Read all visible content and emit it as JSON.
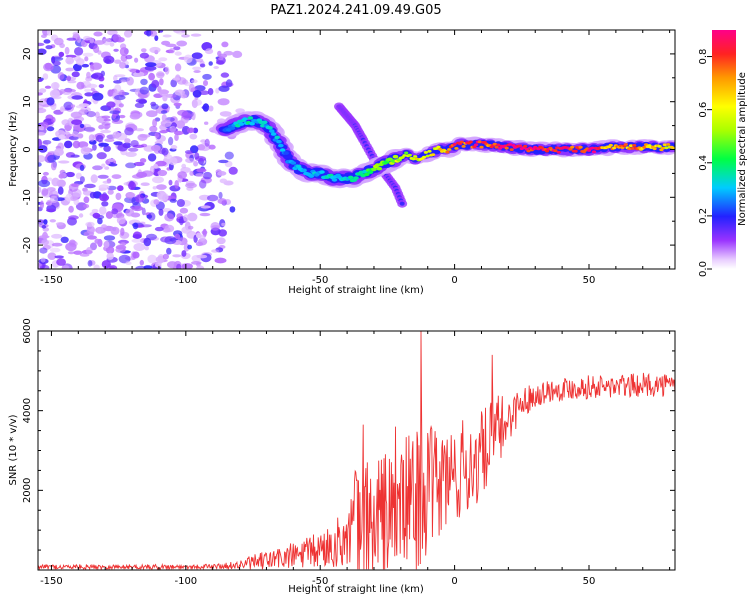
{
  "title": "PAZ1.2024.241.09.49.G05",
  "chart_data": [
    {
      "type": "heatmap",
      "xlabel": "Height of straight line (km)",
      "ylabel": "Frequency (Hz)",
      "xlim": [
        -155,
        82
      ],
      "ylim": [
        -25,
        25
      ],
      "xticks": [
        -150,
        -100,
        -50,
        0,
        50
      ],
      "yticks": [
        -20,
        -10,
        0,
        10,
        20
      ],
      "colorbar": {
        "label": "Normalized spectral amplitude",
        "range": [
          0,
          0.9
        ],
        "ticks": [
          0.0,
          0.2,
          0.4,
          0.6,
          0.8
        ]
      },
      "ridge": {
        "x": [
          -86,
          -82,
          -78,
          -74,
          -70,
          -66,
          -62,
          -58,
          -54,
          -50,
          -46,
          -42,
          -38,
          -34,
          -30,
          -26,
          -22,
          -18,
          -14,
          -10,
          -6,
          -2,
          2,
          6,
          10,
          20,
          30,
          40,
          50,
          60,
          70,
          82
        ],
        "y": [
          4,
          5,
          6,
          6,
          5,
          2,
          -2,
          -4,
          -5,
          -5,
          -6,
          -6,
          -6,
          -5,
          -4,
          -3,
          -2,
          -1,
          -2,
          -1,
          0,
          0,
          1,
          1,
          1,
          0.5,
          0,
          0,
          0,
          0.5,
          0.5,
          0.5
        ],
        "amplitude": [
          0.2,
          0.3,
          0.35,
          0.3,
          0.3,
          0.3,
          0.25,
          0.3,
          0.3,
          0.3,
          0.35,
          0.3,
          0.35,
          0.35,
          0.5,
          0.45,
          0.55,
          0.55,
          0.6,
          0.6,
          0.65,
          0.7,
          0.8,
          0.8,
          0.8,
          0.85,
          0.9,
          0.85,
          0.8,
          0.7,
          0.7,
          0.6
        ]
      },
      "branch": {
        "x": [
          -43,
          -40,
          -37,
          -34,
          -30,
          -26,
          -22,
          -19
        ],
        "y": [
          9,
          7,
          5,
          2,
          -2,
          -5,
          -8,
          -12
        ]
      },
      "noise_region": {
        "x": [
          -155,
          -78
        ],
        "y": [
          -25,
          25
        ]
      }
    },
    {
      "type": "line",
      "xlabel": "Height of straight line (km)",
      "ylabel": "SNR (10 * v/v)",
      "xlim": [
        -155,
        82
      ],
      "ylim": [
        0,
        6000
      ],
      "xticks": [
        -150,
        -100,
        -50,
        0,
        50
      ],
      "yticks": [
        2000,
        4000,
        6000
      ],
      "series": [
        {
          "color": "#ee3333",
          "envelope": {
            "x": [
              -155,
              -100,
              -90,
              -85,
              -80,
              -75,
              -70,
              -65,
              -60,
              -55,
              -50,
              -45,
              -40,
              -37,
              -35,
              -33,
              -30,
              -27,
              -25,
              -22,
              -20,
              -17,
              -15,
              -13,
              -10,
              -7,
              -5,
              -3,
              0,
              3,
              5,
              8,
              10,
              13,
              15,
              18,
              20,
              25,
              30,
              35,
              40,
              50,
              60,
              70,
              82
            ],
            "base": [
              80,
              80,
              90,
              100,
              130,
              180,
              230,
              300,
              350,
              420,
              500,
              650,
              800,
              1000,
              900,
              1000,
              1200,
              1300,
              1400,
              1500,
              1600,
              1700,
              1800,
              1900,
              2000,
              2100,
              2200,
              2300,
              2400,
              2500,
              2600,
              2700,
              2900,
              3200,
              3400,
              3600,
              3800,
              4200,
              4400,
              4500,
              4550,
              4600,
              4600,
              4650,
              4650
            ],
            "spread": [
              60,
              60,
              60,
              80,
              120,
              200,
              250,
              300,
              350,
              400,
              500,
              600,
              700,
              1800,
              1400,
              1800,
              2000,
              1800,
              1600,
              1700,
              1500,
              1800,
              2000,
              1800,
              1600,
              1500,
              1500,
              1400,
              1300,
              1300,
              1300,
              1200,
              1100,
              1000,
              1000,
              800,
              600,
              400,
              300,
              300,
              300,
              300,
              300,
              300,
              300
            ]
          },
          "peaks": [
            {
              "x": -12.5,
              "y": 6000
            },
            {
              "x": 14,
              "y": 5400
            },
            {
              "x": -34,
              "y": 3650
            },
            {
              "x": -22,
              "y": 3600
            }
          ]
        }
      ]
    }
  ]
}
